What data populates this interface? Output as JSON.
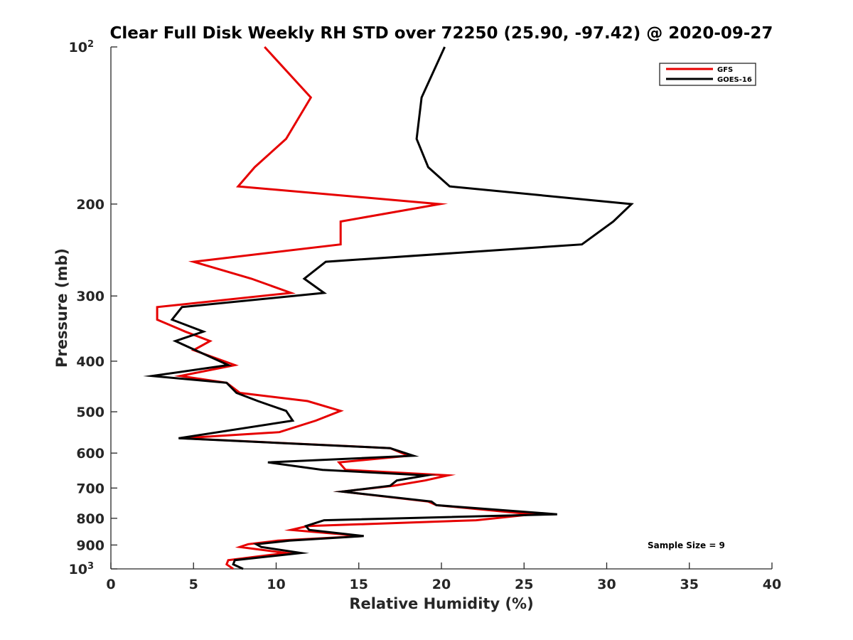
{
  "chart_data": {
    "type": "line",
    "title": "Clear Full Disk Weekly RH STD over 72250 (25.90, -97.42) @ 2020-09-27",
    "xlabel": "Relative Humidity (%)",
    "ylabel": "Pressure (mb)",
    "xlim": [
      0,
      40
    ],
    "ylim": [
      100,
      1000
    ],
    "yscale": "log",
    "y_reversed": true,
    "xticks": [
      0,
      5,
      10,
      15,
      20,
      25,
      30,
      35,
      40
    ],
    "xtick_labels": [
      "0",
      "5",
      "10",
      "15",
      "20",
      "25",
      "30",
      "35",
      "40"
    ],
    "yticks": [
      {
        "value": 100,
        "base": "10",
        "exp": "2"
      },
      {
        "value": 200,
        "label": "200"
      },
      {
        "value": 300,
        "label": "300"
      },
      {
        "value": 400,
        "label": "400"
      },
      {
        "value": 500,
        "label": "500"
      },
      {
        "value": 600,
        "label": "600"
      },
      {
        "value": 700,
        "label": "700"
      },
      {
        "value": 800,
        "label": "800"
      },
      {
        "value": 900,
        "label": "900"
      },
      {
        "value": 1000,
        "base": "10",
        "exp": "3"
      }
    ],
    "grid": false,
    "legend_position": "top-right",
    "annotation": "Sample Size = 9",
    "series": [
      {
        "name": "GFS",
        "color": "#e60000",
        "points": [
          [
            9.3,
            100
          ],
          [
            12.1,
            125
          ],
          [
            10.6,
            150
          ],
          [
            8.7,
            170
          ],
          [
            7.7,
            185
          ],
          [
            19.9,
            200
          ],
          [
            13.9,
            216
          ],
          [
            13.9,
            239
          ],
          [
            5.0,
            258
          ],
          [
            8.5,
            278
          ],
          [
            10.9,
            296
          ],
          [
            2.8,
            315
          ],
          [
            2.8,
            333
          ],
          [
            4.5,
            351
          ],
          [
            6.0,
            366
          ],
          [
            5.0,
            381
          ],
          [
            7.5,
            407
          ],
          [
            4.2,
            427
          ],
          [
            7.0,
            440
          ],
          [
            7.8,
            460
          ],
          [
            11.9,
            477
          ],
          [
            13.9,
            498
          ],
          [
            12.4,
            520
          ],
          [
            10.2,
            547
          ],
          [
            4.3,
            562
          ],
          [
            16.9,
            587
          ],
          [
            18.0,
            607
          ],
          [
            13.8,
            625
          ],
          [
            14.2,
            646
          ],
          [
            20.4,
            662
          ],
          [
            19.0,
            677
          ],
          [
            17.1,
            693
          ],
          [
            14.0,
            711
          ],
          [
            19.2,
            743
          ],
          [
            19.7,
            755
          ],
          [
            25.5,
            786
          ],
          [
            22.1,
            807
          ],
          [
            11.9,
            828
          ],
          [
            10.9,
            842
          ],
          [
            15.2,
            865
          ],
          [
            10.1,
            883
          ],
          [
            8.3,
            897
          ],
          [
            7.8,
            908
          ],
          [
            10.6,
            932
          ],
          [
            7.1,
            962
          ],
          [
            7.0,
            980
          ],
          [
            7.4,
            1000
          ]
        ]
      },
      {
        "name": "GOES-16",
        "color": "#000000",
        "points": [
          [
            20.2,
            100
          ],
          [
            18.8,
            125
          ],
          [
            18.5,
            150
          ],
          [
            19.2,
            170
          ],
          [
            20.5,
            185
          ],
          [
            31.5,
            200
          ],
          [
            30.4,
            216
          ],
          [
            28.5,
            239
          ],
          [
            13.0,
            258
          ],
          [
            11.7,
            278
          ],
          [
            12.9,
            296
          ],
          [
            4.3,
            315
          ],
          [
            3.7,
            333
          ],
          [
            5.6,
            351
          ],
          [
            3.9,
            366
          ],
          [
            7.1,
            407
          ],
          [
            2.5,
            427
          ],
          [
            7.0,
            440
          ],
          [
            7.6,
            460
          ],
          [
            8.9,
            477
          ],
          [
            10.6,
            498
          ],
          [
            11.0,
            520
          ],
          [
            4.1,
            562
          ],
          [
            16.9,
            587
          ],
          [
            18.3,
            607
          ],
          [
            9.5,
            625
          ],
          [
            12.8,
            646
          ],
          [
            19.1,
            662
          ],
          [
            17.3,
            677
          ],
          [
            16.9,
            693
          ],
          [
            14.0,
            711
          ],
          [
            19.4,
            743
          ],
          [
            19.7,
            755
          ],
          [
            27.0,
            786
          ],
          [
            12.9,
            807
          ],
          [
            11.8,
            828
          ],
          [
            12.0,
            842
          ],
          [
            15.3,
            865
          ],
          [
            10.8,
            883
          ],
          [
            8.8,
            897
          ],
          [
            9.1,
            908
          ],
          [
            11.5,
            932
          ],
          [
            7.5,
            962
          ],
          [
            7.4,
            980
          ],
          [
            8.0,
            1000
          ]
        ]
      }
    ]
  }
}
